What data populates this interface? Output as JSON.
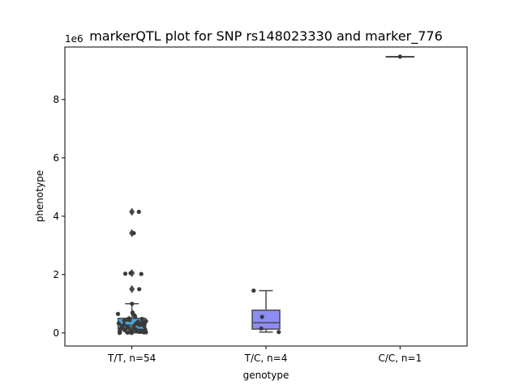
{
  "chart_data": {
    "type": "box",
    "title": "markerQTL plot for SNP rs148023330 and marker_776",
    "xlabel": "genotype",
    "ylabel": "phenotype",
    "offset_label": "1e6",
    "ylim": [
      -0.45,
      9.8
    ],
    "yticks": [
      0,
      2,
      4,
      6,
      8
    ],
    "grid": false,
    "categories": [
      "T/T, n=54",
      "T/C, n=4",
      "C/C, n=1"
    ],
    "colors": {
      "tt": "#4aa6d6",
      "tc": "#8c8cf2",
      "cc": "#7a7a7a",
      "point": "#3a3a3a",
      "line": "#4a4a4a"
    },
    "boxes": [
      {
        "category": "T/T, n=54",
        "q1": 0.12,
        "median": 0.27,
        "q3": 0.5,
        "whisker_low": 0.0,
        "whisker_high": 1.0,
        "fliers": [
          1.5,
          2.05,
          3.42,
          4.15
        ]
      },
      {
        "category": "T/C, n=4",
        "q1": 0.13,
        "median": 0.35,
        "q3": 0.78,
        "whisker_low": 0.03,
        "whisker_high": 1.45,
        "fliers": []
      },
      {
        "category": "C/C, n=1",
        "q1": 9.47,
        "median": 9.47,
        "q3": 9.47,
        "whisker_low": 9.47,
        "whisker_high": 9.47,
        "fliers": []
      }
    ],
    "points": [
      {
        "category": "T/T, n=54",
        "values": [
          4.15,
          3.42,
          2.05,
          2.03,
          2.02,
          1.5,
          1.0,
          0.7,
          0.68,
          0.65,
          0.6,
          0.55,
          0.5,
          0.48,
          0.46,
          0.44,
          0.42,
          0.4,
          0.38,
          0.36,
          0.35,
          0.33,
          0.31,
          0.3,
          0.28,
          0.27,
          0.25,
          0.24,
          0.22,
          0.2,
          0.19,
          0.18,
          0.16,
          0.15,
          0.14,
          0.12,
          0.11,
          0.1,
          0.09,
          0.08,
          0.07,
          0.06,
          0.05,
          0.05,
          0.04,
          0.04,
          0.03,
          0.03,
          0.02,
          0.02,
          0.01,
          0.01,
          0.0,
          0.0
        ]
      },
      {
        "category": "T/C, n=4",
        "values": [
          1.45,
          0.55,
          0.15,
          0.03
        ]
      },
      {
        "category": "C/C, n=1",
        "values": [
          9.47
        ]
      }
    ]
  }
}
